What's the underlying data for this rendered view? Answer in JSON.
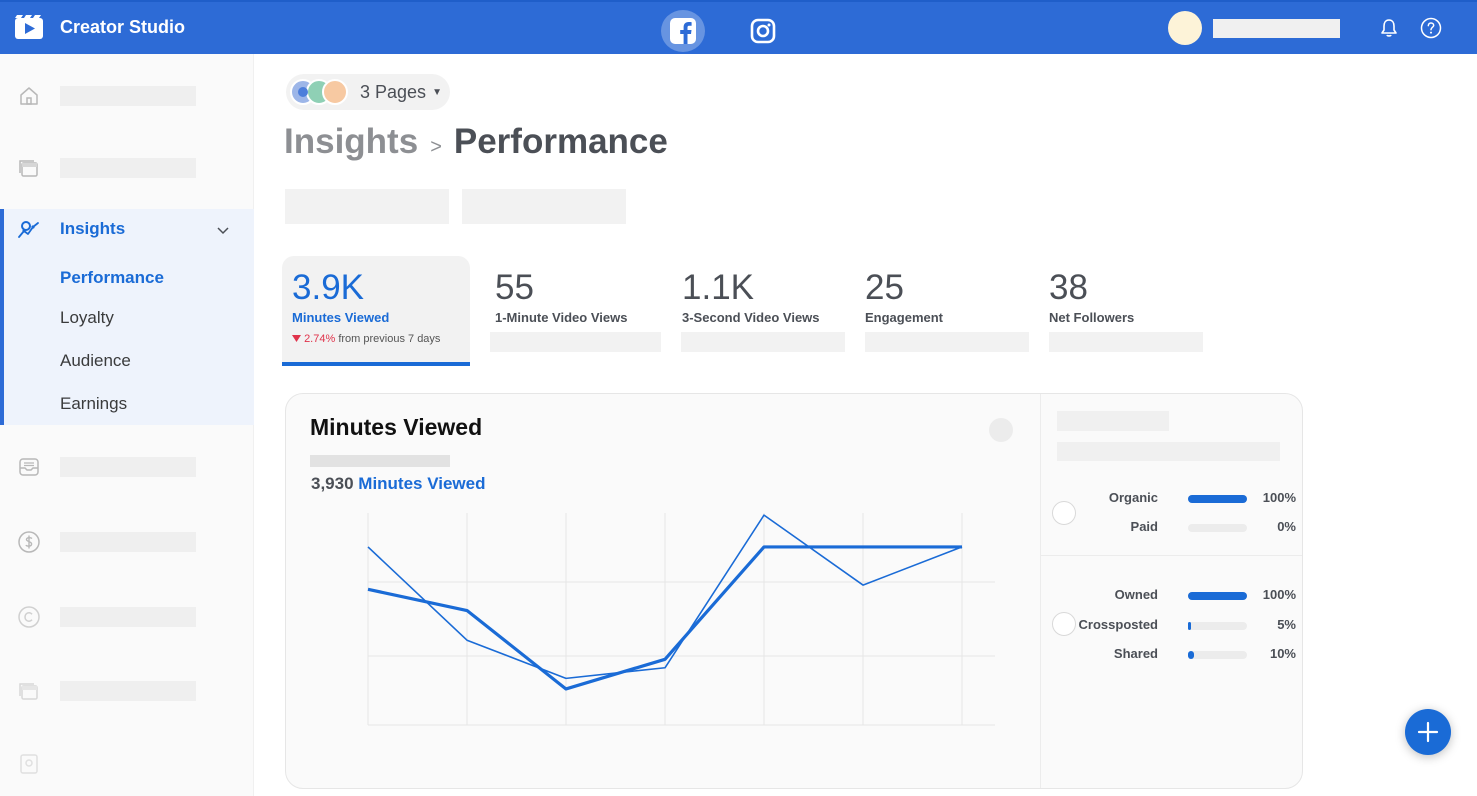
{
  "app": {
    "title": "Creator Studio"
  },
  "header": {
    "platforms": [
      {
        "name": "facebook-icon",
        "active": true
      },
      {
        "name": "instagram-icon",
        "active": false
      }
    ]
  },
  "sidebar": {
    "insights": {
      "label": "Insights",
      "sub_items": [
        {
          "label": "Performance",
          "active": true
        },
        {
          "label": "Loyalty"
        },
        {
          "label": "Audience"
        },
        {
          "label": "Earnings"
        }
      ]
    }
  },
  "pages_selector": {
    "label": "3 Pages"
  },
  "breadcrumb": {
    "parent": "Insights",
    "separator": ">",
    "current": "Performance"
  },
  "metrics": [
    {
      "value": "3.9K",
      "label": "Minutes Viewed",
      "change_pct": "2.74%",
      "change_text": "from previous 7 days",
      "trend": "down"
    },
    {
      "value": "55",
      "label": "1-Minute  Video Views"
    },
    {
      "value": "1.1K",
      "label": "3-Second  Video Views"
    },
    {
      "value": "25",
      "label": "Engagement"
    },
    {
      "value": "38",
      "label": "Net Followers"
    }
  ],
  "chart_card": {
    "title": "Minutes Viewed",
    "total_value": "3,930",
    "total_label": "Minutes Viewed"
  },
  "chart_data": {
    "type": "line",
    "x": [
      0,
      1,
      2,
      3,
      4,
      5,
      6
    ],
    "ylim": [
      0,
      100
    ],
    "grid": true,
    "series": [
      {
        "values": [
          64,
          54,
          17,
          31,
          84,
          84,
          84
        ],
        "style": "thick",
        "color": "#1a6bd6"
      },
      {
        "values": [
          84,
          40,
          22,
          27,
          99,
          66,
          84
        ],
        "style": "thin",
        "color": "#1a6bd6"
      }
    ]
  },
  "sources": {
    "group1": [
      {
        "label": "Organic",
        "pct": "100%",
        "fraction": 1.0
      },
      {
        "label": "Paid",
        "pct": "0%",
        "fraction": 0.0
      }
    ],
    "group2": [
      {
        "label": "Owned",
        "pct": "100%",
        "fraction": 1.0
      },
      {
        "label": "Crossposted",
        "pct": "5%",
        "fraction": 0.05
      },
      {
        "label": "Shared",
        "pct": "10%",
        "fraction": 0.1
      }
    ]
  },
  "colors": {
    "brand": "#2d6bd6",
    "accent": "#1a6bd6",
    "negative": "#e0334b"
  }
}
